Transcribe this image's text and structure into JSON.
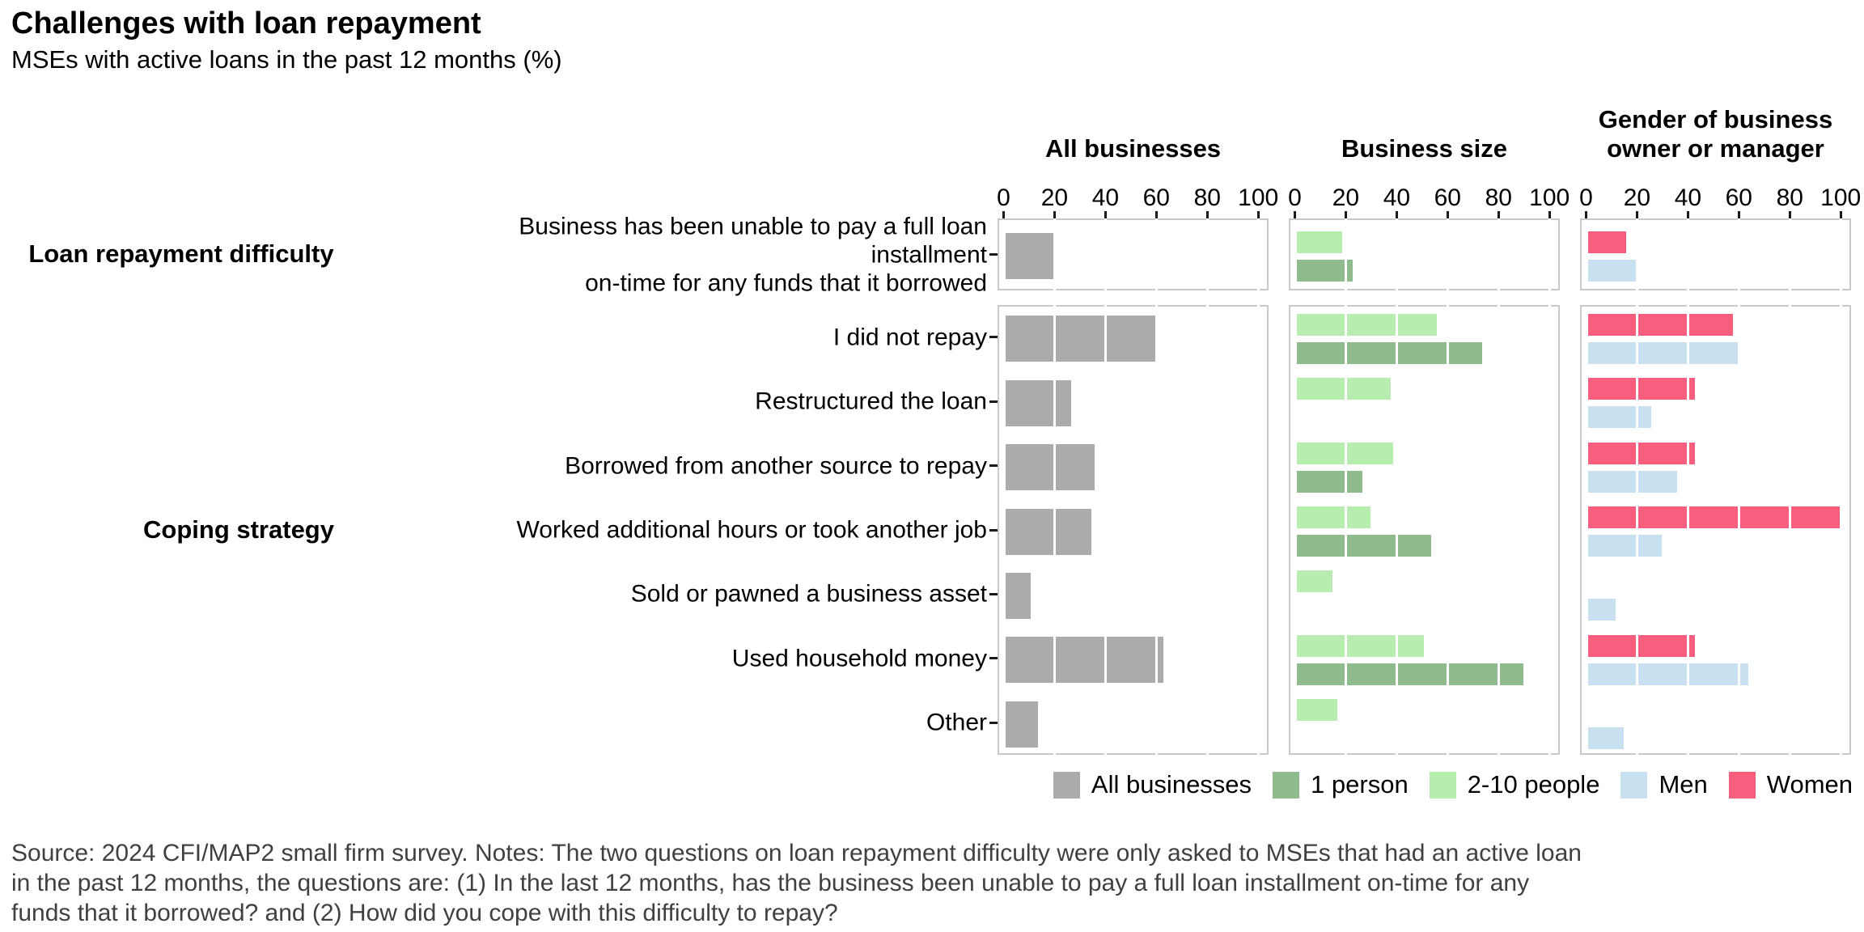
{
  "header": {
    "title": "Challenges with loan repayment",
    "subtitle": "MSEs with active loans in the past 12 months (%)"
  },
  "chart_data": {
    "type": "bar",
    "orientation": "horizontal",
    "xlim": [
      0,
      100
    ],
    "x_ticks": [
      0,
      20,
      40,
      60,
      80,
      100
    ],
    "grid": "white vertical gridlines over bars",
    "legend_position": "bottom-right",
    "panels": [
      {
        "label": "All businesses",
        "series_keys": [
          "all"
        ]
      },
      {
        "label": "Business size",
        "series_keys": [
          "two_ten",
          "one_person"
        ]
      },
      {
        "label": "Gender of business owner or manager",
        "series_keys": [
          "women",
          "men"
        ]
      }
    ],
    "series_meta": {
      "all": {
        "name": "All businesses",
        "color": "#ababab"
      },
      "one_person": {
        "name": "1 person",
        "color": "#8fbc8f"
      },
      "two_ten": {
        "name": "2-10 people",
        "color": "#b8edb0"
      },
      "men": {
        "name": "Men",
        "color": "#c9e0f0"
      },
      "women": {
        "name": "Women",
        "color": "#fa5e7f"
      }
    },
    "groups": [
      {
        "label": "Loan repayment difficulty",
        "rows": [
          {
            "label": "Business has been unable to pay a full loan installment\non-time for any funds that it borrowed",
            "values": {
              "all": 20,
              "one_person": 22,
              "two_ten": 18,
              "men": 19,
              "women": 15
            }
          }
        ]
      },
      {
        "label": "Coping strategy",
        "rows": [
          {
            "label": "I did not repay",
            "values": {
              "all": 60,
              "one_person": 73,
              "two_ten": 55,
              "men": 60,
              "women": 57
            }
          },
          {
            "label": "Restructured the loan",
            "values": {
              "all": 26,
              "one_person": null,
              "two_ten": 37,
              "men": 25,
              "women": 42
            }
          },
          {
            "label": "Borrowed from another source to repay",
            "values": {
              "all": 35,
              "one_person": 26,
              "two_ten": 38,
              "men": 35,
              "women": 42
            }
          },
          {
            "label": "Worked additional hours or took another job",
            "values": {
              "all": 34,
              "one_person": 53,
              "two_ten": 29,
              "men": 29,
              "women": 100
            }
          },
          {
            "label": "Sold or pawned a business asset",
            "values": {
              "all": 10,
              "one_person": null,
              "two_ten": 14,
              "men": 11,
              "women": null
            }
          },
          {
            "label": "Used household money",
            "values": {
              "all": 62,
              "one_person": 89,
              "two_ten": 50,
              "men": 63,
              "women": 42
            }
          },
          {
            "label": "Other",
            "values": {
              "all": 13,
              "one_person": null,
              "two_ten": 16,
              "men": 14,
              "women": null
            }
          }
        ]
      }
    ]
  },
  "legend": [
    {
      "name": "All businesses",
      "color": "#ababab"
    },
    {
      "name": "1 person",
      "color": "#8fbc8f"
    },
    {
      "name": "2-10 people",
      "color": "#b8edb0"
    },
    {
      "name": "Men",
      "color": "#c9e0f0"
    },
    {
      "name": "Women",
      "color": "#fa5e7f"
    }
  ],
  "source_lines": [
    "Source: 2024 CFI/MAP2 small firm survey. Notes: The two questions on loan repayment difficulty were only asked to MSEs that had an active loan",
    "in the past 12 months, the questions are: (1) In the last 12 months, has the business been unable to pay a full loan installment on-time for any",
    "funds that it borrowed? and (2) How did you cope with this difficulty to repay?"
  ]
}
